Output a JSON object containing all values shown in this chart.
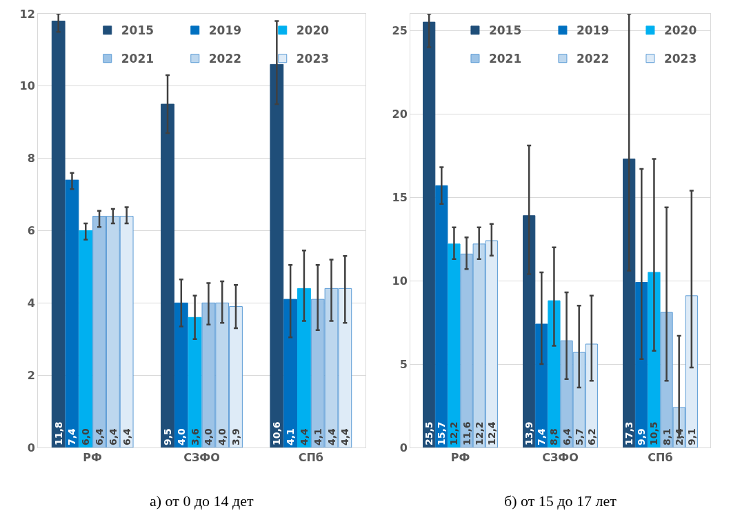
{
  "chart_data": [
    {
      "type": "bar",
      "categories": [
        "РФ",
        "СЗФО",
        "СПб"
      ],
      "ylim": [
        0,
        12
      ],
      "yticks": [
        0,
        2,
        4,
        6,
        8,
        10,
        12
      ],
      "grid": "y",
      "legend": "top",
      "annotations": [
        "а) от 0 до 14 дет"
      ],
      "series": [
        {
          "name": "2015",
          "color": "#1f4e79",
          "values": [
            11.8,
            9.5,
            10.6
          ],
          "value_labels": [
            "11,8",
            "9,5",
            "10,6"
          ],
          "errors": [
            [
              11.5,
              12.0
            ],
            [
              8.7,
              10.3
            ],
            [
              9.5,
              11.8
            ]
          ]
        },
        {
          "name": "2019",
          "color": "#0070c0",
          "values": [
            7.4,
            4.0,
            4.1
          ],
          "value_labels": [
            "7,4",
            "4,0",
            "4,1"
          ],
          "errors": [
            [
              7.15,
              7.6
            ],
            [
              3.35,
              4.65
            ],
            [
              3.05,
              5.05
            ]
          ]
        },
        {
          "name": "2020",
          "color": "#00b0f0",
          "values": [
            6.0,
            3.6,
            4.4
          ],
          "value_labels": [
            "6,0",
            "3,6",
            "4,4"
          ],
          "errors": [
            [
              5.75,
              6.2
            ],
            [
              3.0,
              4.2
            ],
            [
              3.5,
              5.45
            ]
          ]
        },
        {
          "name": "2021",
          "color": "#9dc3e6",
          "values": [
            6.4,
            4.0,
            4.1
          ],
          "value_labels": [
            "6,4",
            "4,0",
            "4,1"
          ],
          "errors": [
            [
              6.1,
              6.55
            ],
            [
              3.4,
              4.55
            ],
            [
              3.25,
              5.05
            ]
          ]
        },
        {
          "name": "2022",
          "color": "#bdd7ee",
          "values": [
            6.4,
            4.0,
            4.4
          ],
          "value_labels": [
            "6,4",
            "4,0",
            "4,4"
          ],
          "errors": [
            [
              6.2,
              6.6
            ],
            [
              3.45,
              4.6
            ],
            [
              3.5,
              5.2
            ]
          ]
        },
        {
          "name": "2023",
          "color": "#deebf7",
          "values": [
            6.4,
            3.9,
            4.4
          ],
          "value_labels": [
            "6,4",
            "3,9",
            "4,4"
          ],
          "errors": [
            [
              6.2,
              6.65
            ],
            [
              3.3,
              4.5
            ],
            [
              3.45,
              5.3
            ]
          ]
        }
      ]
    },
    {
      "type": "bar",
      "categories": [
        "РФ",
        "СЗФО",
        "СПб"
      ],
      "ylim": [
        0,
        26
      ],
      "yticks": [
        0,
        5,
        10,
        15,
        20,
        25
      ],
      "grid": "y",
      "legend": "top",
      "annotations": [
        "б) от 15 до 17 лет"
      ],
      "series": [
        {
          "name": "2015",
          "color": "#1f4e79",
          "values": [
            25.5,
            13.9,
            17.3
          ],
          "value_labels": [
            "25,5",
            "13,9",
            "17,3"
          ],
          "errors": [
            [
              24.0,
              26.0
            ],
            [
              10.4,
              18.1
            ],
            [
              10.6,
              26.0
            ]
          ]
        },
        {
          "name": "2019",
          "color": "#0070c0",
          "values": [
            15.7,
            7.4,
            9.9
          ],
          "value_labels": [
            "15,7",
            "7,4",
            "9,9"
          ],
          "errors": [
            [
              14.6,
              16.8
            ],
            [
              5.0,
              10.5
            ],
            [
              5.3,
              16.7
            ]
          ]
        },
        {
          "name": "2020",
          "color": "#00b0f0",
          "values": [
            12.2,
            8.8,
            10.5
          ],
          "value_labels": [
            "12,2",
            "8,8",
            "10,5"
          ],
          "errors": [
            [
              11.3,
              13.2
            ],
            [
              6.1,
              12.0
            ],
            [
              5.8,
              17.3
            ]
          ]
        },
        {
          "name": "2021",
          "color": "#9dc3e6",
          "values": [
            11.6,
            6.4,
            8.1
          ],
          "value_labels": [
            "11,6",
            "6,4",
            "8,1"
          ],
          "errors": [
            [
              10.7,
              12.6
            ],
            [
              4.1,
              9.3
            ],
            [
              4.0,
              14.4
            ]
          ]
        },
        {
          "name": "2022",
          "color": "#bdd7ee",
          "values": [
            12.2,
            5.7,
            2.4
          ],
          "value_labels": [
            "12,2",
            "5,7",
            "2,4"
          ],
          "errors": [
            [
              11.3,
              13.2
            ],
            [
              3.6,
              8.5
            ],
            [
              0.6,
              6.7
            ]
          ]
        },
        {
          "name": "2023",
          "color": "#deebf7",
          "values": [
            12.4,
            6.2,
            9.1
          ],
          "value_labels": [
            "12,4",
            "6,2",
            "9,1"
          ],
          "errors": [
            [
              11.5,
              13.4
            ],
            [
              4.0,
              9.1
            ],
            [
              4.8,
              15.4
            ]
          ]
        }
      ]
    }
  ]
}
